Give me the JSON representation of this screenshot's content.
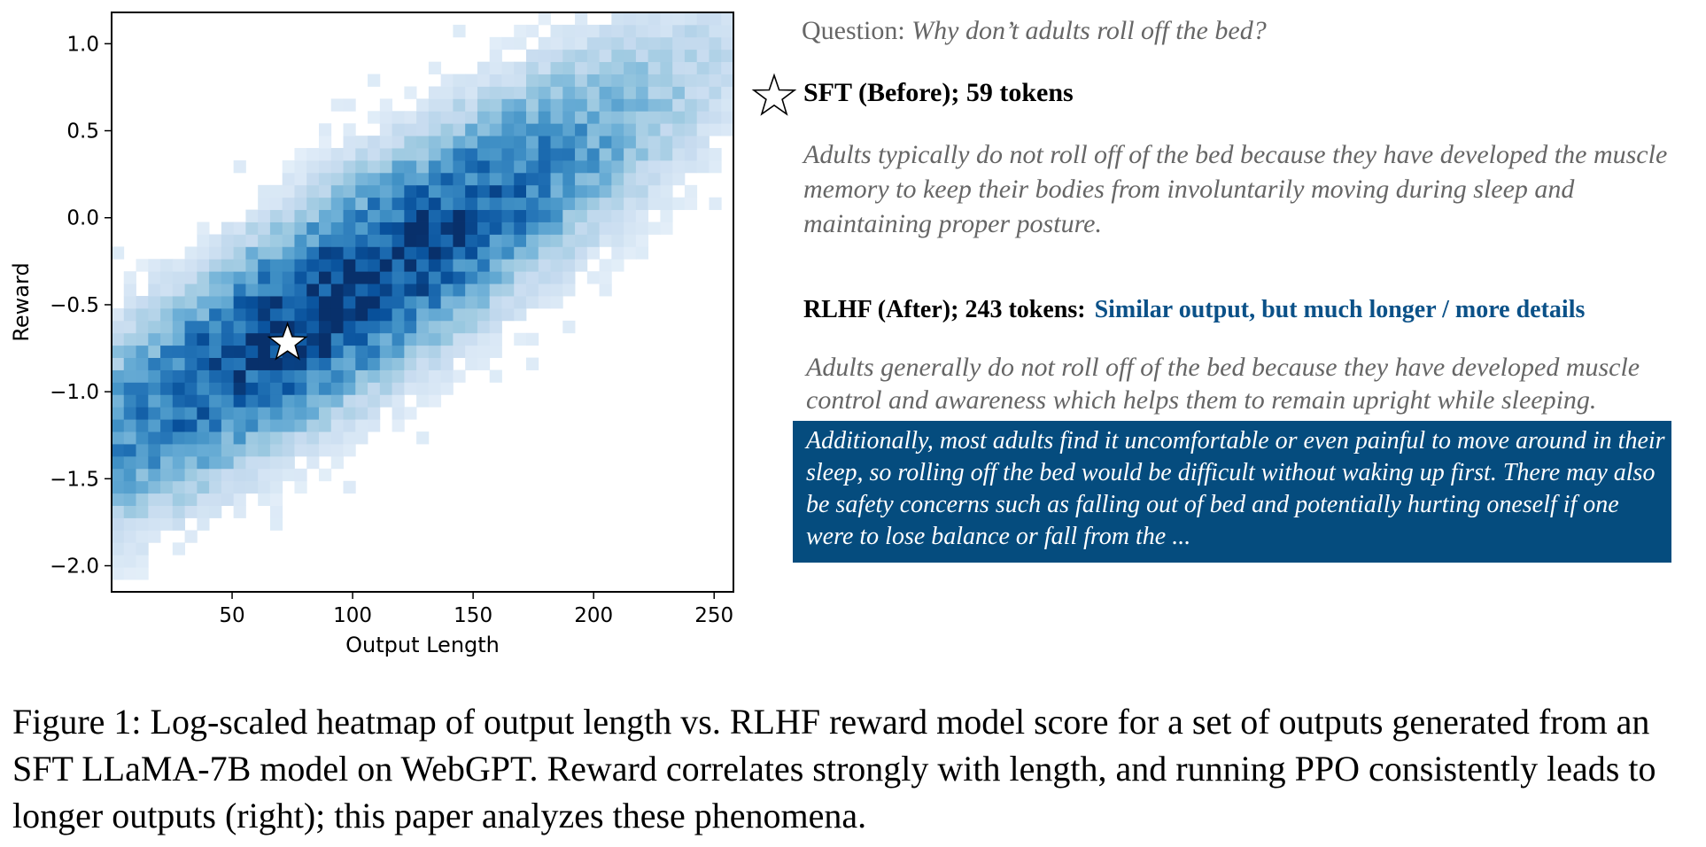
{
  "chart_data": {
    "type": "heatmap",
    "xlabel": "Output Length",
    "ylabel": "Reward",
    "xlim": [
      0,
      258
    ],
    "ylim": [
      -2.15,
      1.18
    ],
    "xticks": [
      50,
      100,
      150,
      200,
      250
    ],
    "yticks": [
      -2.0,
      -1.5,
      -1.0,
      -0.5,
      0.0,
      0.5,
      1.0
    ],
    "ytick_labels": [
      "−2.0",
      "−1.5",
      "−1.0",
      "−0.5",
      "0.0",
      "0.5",
      "1.0"
    ],
    "xtick_labels": [
      "50",
      "100",
      "150",
      "200",
      "250"
    ],
    "colormap": "Blues",
    "scale": "log",
    "density_center": {
      "x": 95,
      "y": -0.45
    },
    "marker": {
      "symbol": "star",
      "x": 73,
      "y": -0.72
    }
  },
  "question": {
    "prefix": "Question:",
    "text": "Why don’t adults roll off the bed?"
  },
  "sft": {
    "heading": "SFT (Before); 59 tokens",
    "text": "Adults typically do not roll off of the bed because they have developed the muscle memory to keep their bodies from involuntarily moving during sleep and maintaining proper posture."
  },
  "rlhf": {
    "heading": "RLHF (After); 243 tokens:",
    "note": "Similar output, but much longer / more details",
    "text": "Adults generally do not roll off of the bed because they have developed muscle control and awareness which helps them to remain upright while sleeping.",
    "extra": "Additionally, most adults find it uncomfortable or even painful to move around in their sleep, so rolling off the bed would be difficult without waking up first. There may also be safety concerns such as falling out of bed and potentially hurting oneself if one were to lose balance or fall from the ..."
  },
  "colors": {
    "note": "#0b5188",
    "highlight": "#054c7e",
    "muted_text": "#666666"
  },
  "caption": "Figure 1: Log-scaled heatmap of output length vs. RLHF reward model score for a set of outputs generated from an SFT LLaMA-7B model on WebGPT. Reward correlates strongly with length, and running PPO consistently leads to longer outputs (right); this paper analyzes these phenomena."
}
